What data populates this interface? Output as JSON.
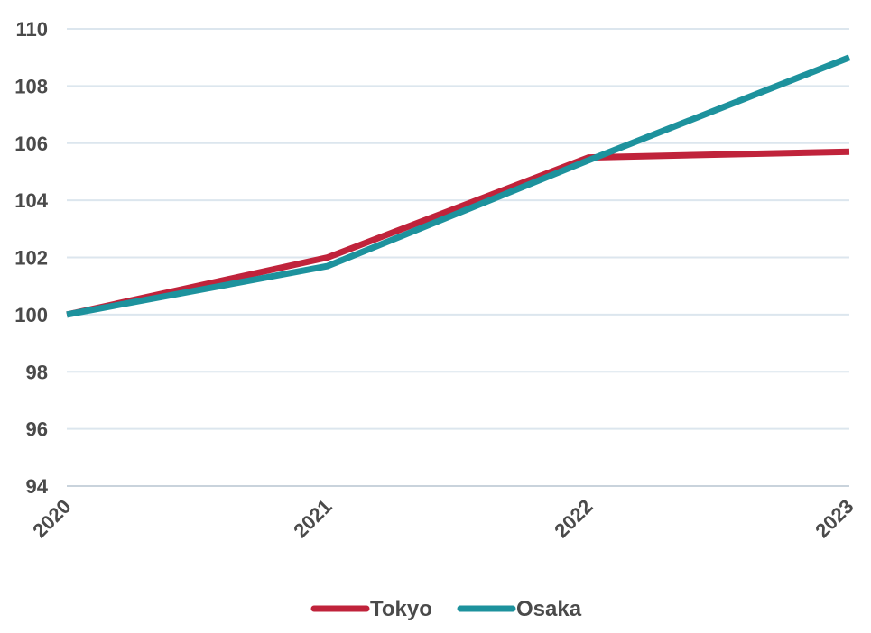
{
  "chart_data": {
    "type": "line",
    "categories": [
      "2020",
      "2021",
      "2022",
      "2023"
    ],
    "series": [
      {
        "name": "Tokyo",
        "values": [
          100.0,
          102.0,
          105.5,
          105.7
        ],
        "color": "#c0233b"
      },
      {
        "name": "Osaka",
        "values": [
          100.0,
          101.7,
          105.4,
          109.0
        ],
        "color": "#1d929d"
      }
    ],
    "title": "",
    "xlabel": "",
    "ylabel": "",
    "ylim": [
      94,
      110
    ],
    "yticks": [
      94,
      96,
      98,
      100,
      102,
      104,
      106,
      108,
      110
    ],
    "grid": true,
    "legend_position": "bottom-center"
  }
}
